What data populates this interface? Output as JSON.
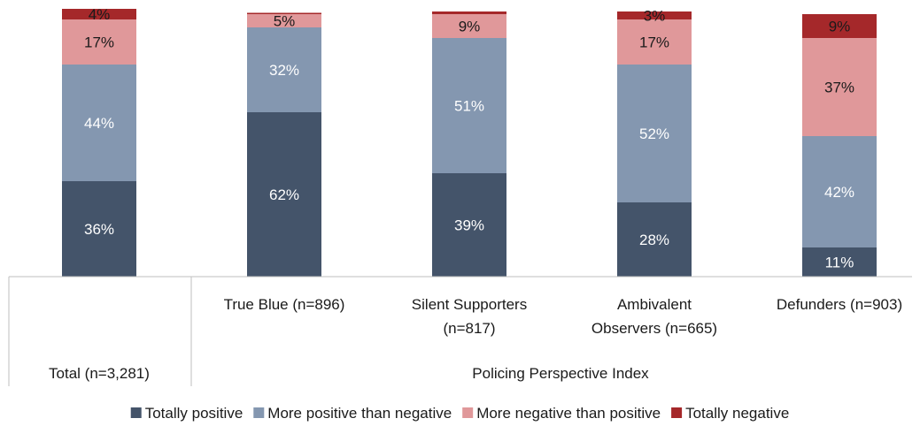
{
  "chart_data": {
    "type": "bar",
    "stacked": true,
    "categories": [
      "Total (n=3,281)",
      "True Blue (n=896)",
      "Silent Supporters (n=817)",
      "Ambivalent Observers (n=665)",
      "Defunders (n=903)"
    ],
    "group_label": "Policing Perspective Index",
    "series": [
      {
        "name": "Totally positive",
        "color": "#44546a",
        "values": [
          36,
          62,
          39,
          28,
          11
        ],
        "labels": [
          "36%",
          "62%",
          "39%",
          "28%",
          "11%"
        ]
      },
      {
        "name": "More positive than negative",
        "color": "#8497b0",
        "values": [
          44,
          32,
          51,
          52,
          42
        ],
        "labels": [
          "44%",
          "32%",
          "51%",
          "52%",
          "42%"
        ]
      },
      {
        "name": "More negative than positive",
        "color": "#e0989a",
        "values": [
          17,
          5,
          9,
          17,
          37
        ],
        "labels": [
          "17%",
          "5%",
          "9%",
          "17%",
          "37%"
        ]
      },
      {
        "name": "Totally negative",
        "color": "#a5282a",
        "values": [
          4,
          0.5,
          1,
          3,
          9
        ],
        "labels": [
          "4%",
          "",
          "",
          "3%",
          "9%"
        ]
      }
    ],
    "legend_position": "bottom",
    "grid": false
  }
}
